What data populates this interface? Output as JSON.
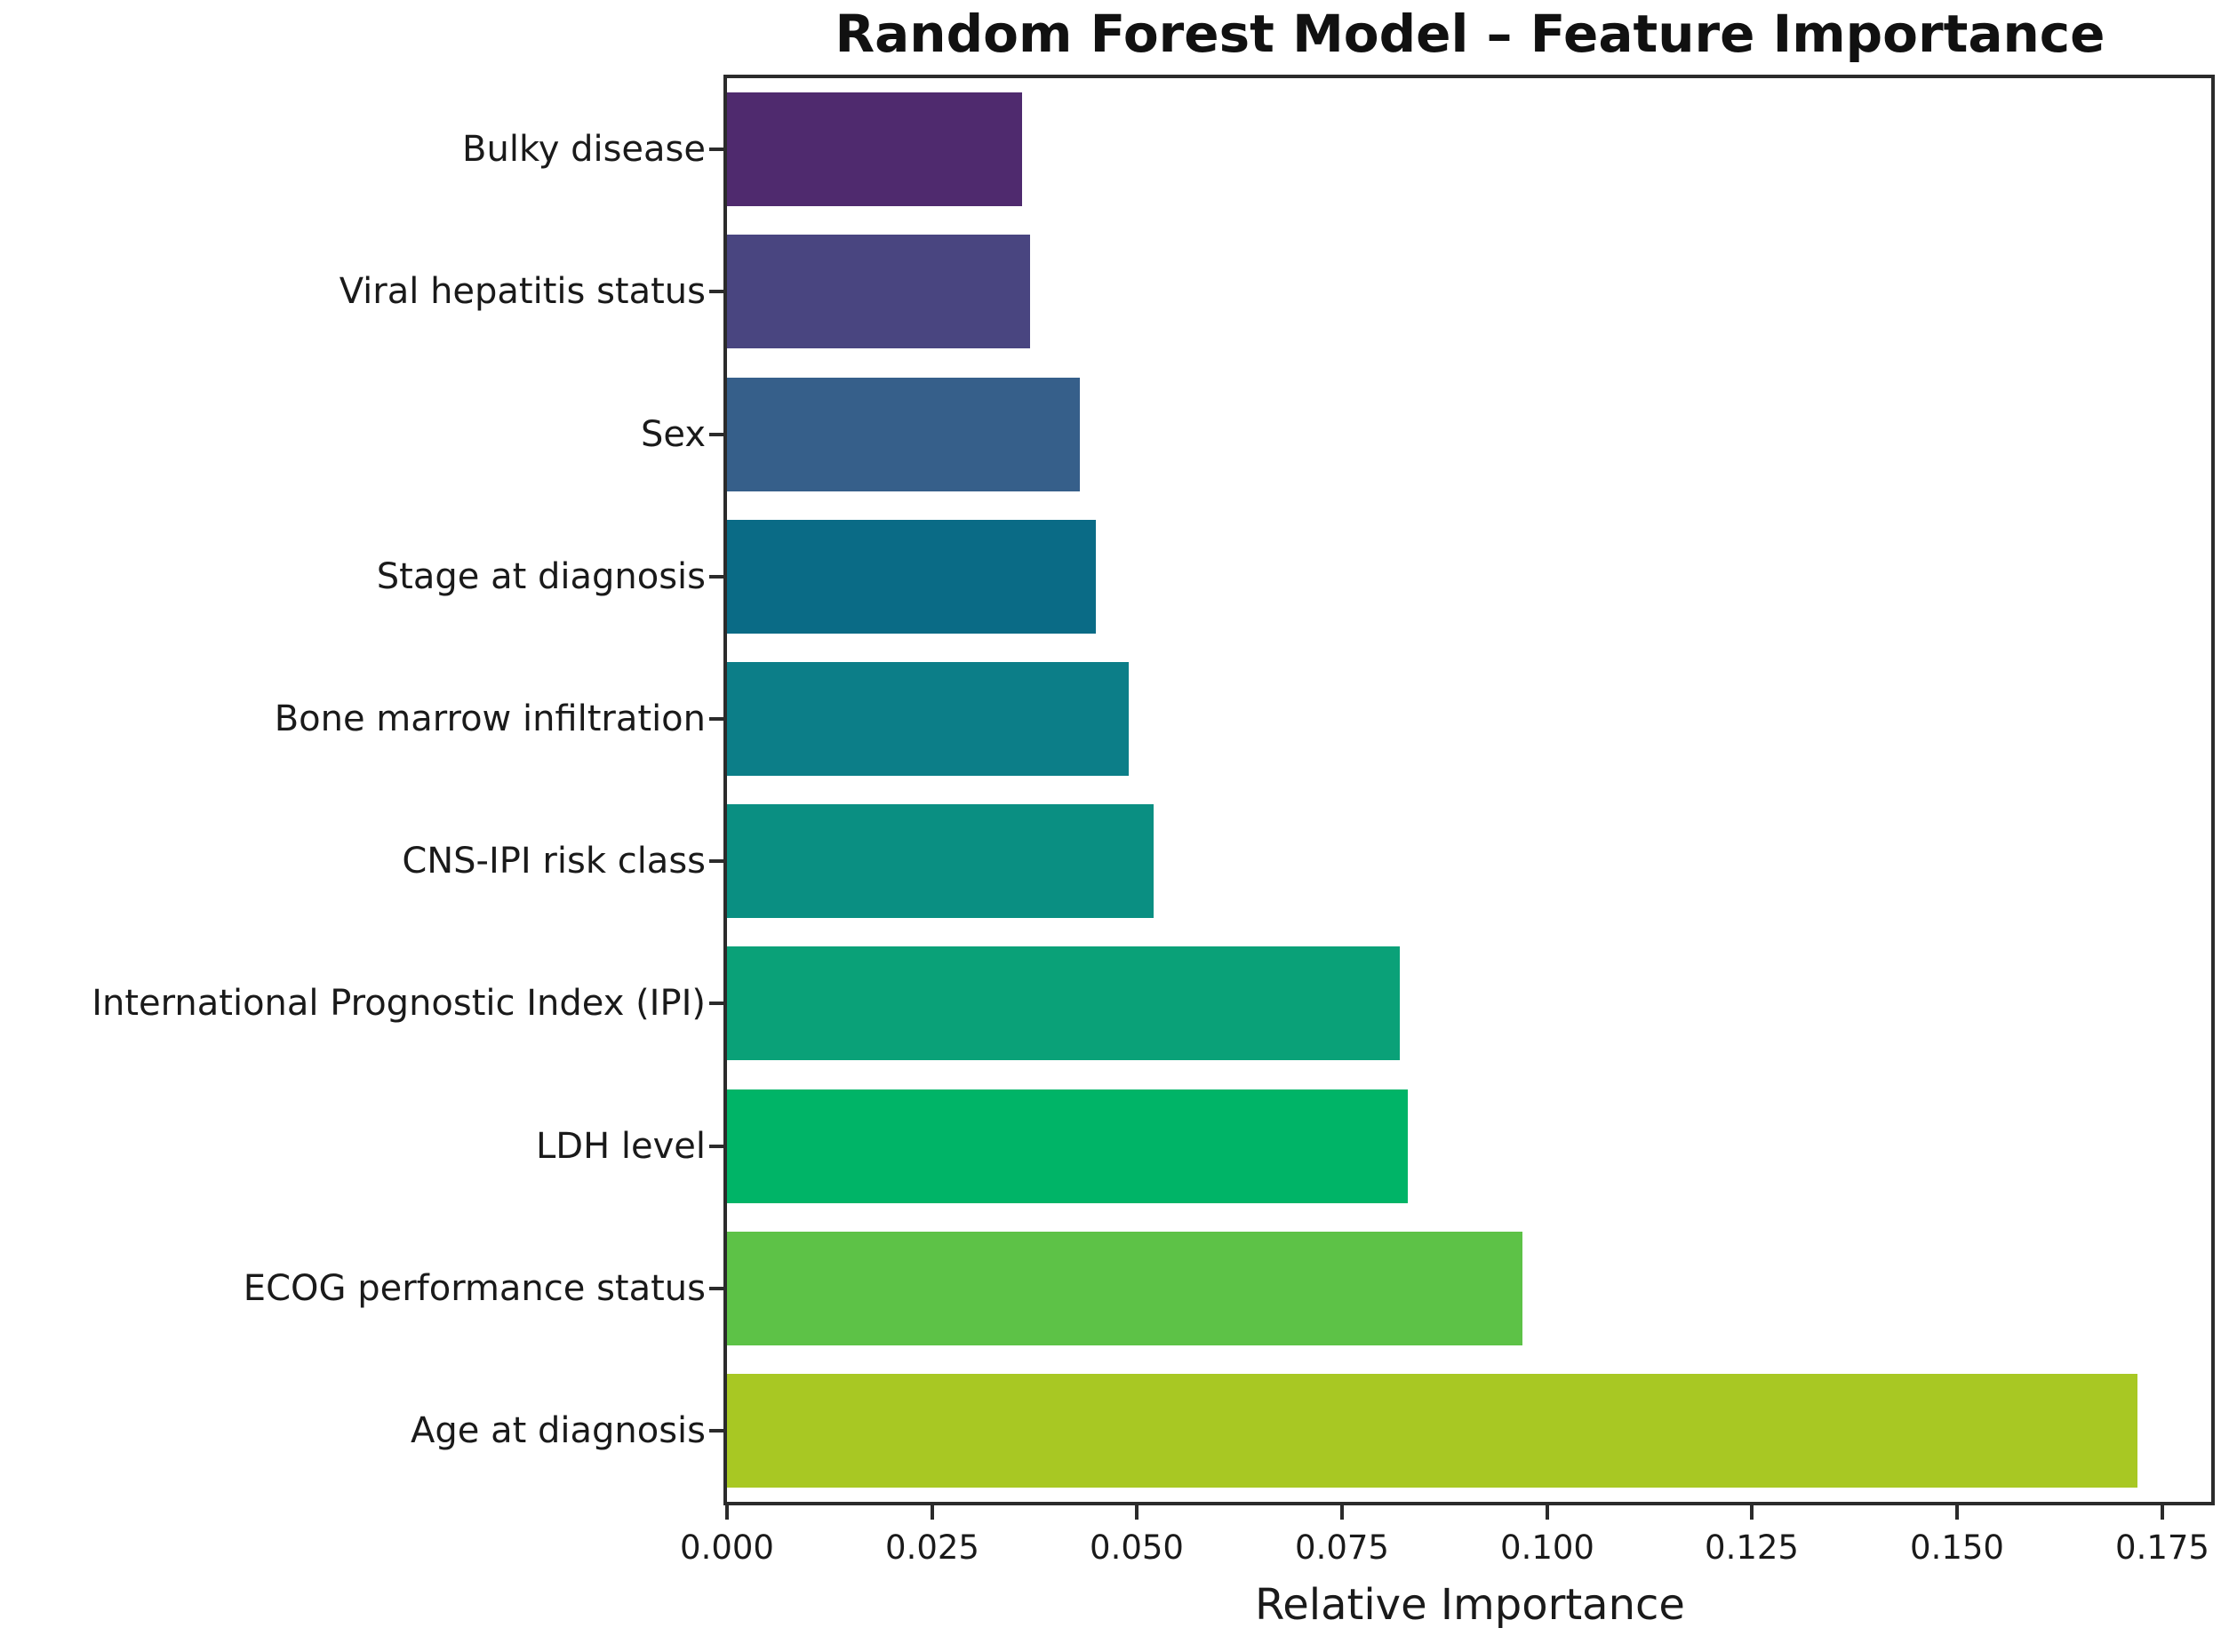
{
  "chart_data": {
    "type": "bar",
    "orientation": "horizontal",
    "title": "Random Forest Model – Feature Importance",
    "xlabel": "Relative Importance",
    "ylabel": "",
    "grid": false,
    "legend": null,
    "categories_top_to_bottom": [
      "Bulky disease",
      "Viral hepatitis status",
      "Sex",
      "Stage at diagnosis",
      "Bone marrow infiltration",
      "CNS-IPI risk class",
      "International Prognostic Index (IPI)",
      "LDH level",
      "ECOG performance status",
      "Age at diagnosis"
    ],
    "values": [
      0.036,
      0.037,
      0.043,
      0.045,
      0.049,
      0.052,
      0.082,
      0.083,
      0.097,
      0.172
    ],
    "bar_colors": [
      "#4F2A6E",
      "#494580",
      "#365F8A",
      "#0A6B86",
      "#0C7E88",
      "#0A8F82",
      "#0AA178",
      "#00B467",
      "#5DC247",
      "#A8C823"
    ],
    "xtick_labels": [
      "0.000",
      "0.025",
      "0.050",
      "0.075",
      "0.100",
      "0.125",
      "0.150",
      "0.175"
    ],
    "xtick_values": [
      0.0,
      0.025,
      0.05,
      0.075,
      0.1,
      0.125,
      0.15,
      0.175
    ],
    "xlim": [
      0.0,
      0.181
    ]
  },
  "colors": {
    "background": "#ffffff",
    "spine": "#2b2b2b",
    "text": "#1a1a1a",
    "title_text": "#111111"
  }
}
